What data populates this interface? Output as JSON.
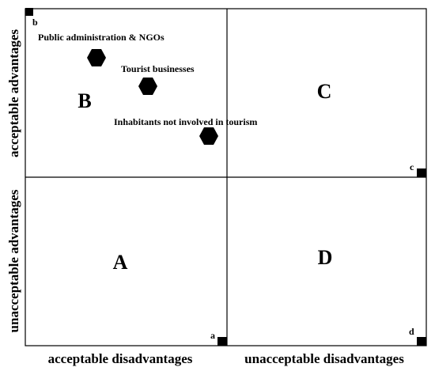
{
  "axes": {
    "y_upper": "acceptable advantages",
    "y_lower": "unacceptable advantages",
    "x_left": "acceptable disadvantages",
    "x_right": "unacceptable disadvantages"
  },
  "quadrants": {
    "A": "A",
    "B": "B",
    "C": "C",
    "D": "D"
  },
  "corners": {
    "a": "a",
    "b": "b",
    "c": "c",
    "d": "d"
  },
  "stakeholders": [
    {
      "label": "Public administration & NGOs"
    },
    {
      "label": "Tourist businesses"
    },
    {
      "label": "Inhabitants not involved in tourism"
    }
  ],
  "colors": {
    "ink": "#000000",
    "background": "#ffffff"
  }
}
